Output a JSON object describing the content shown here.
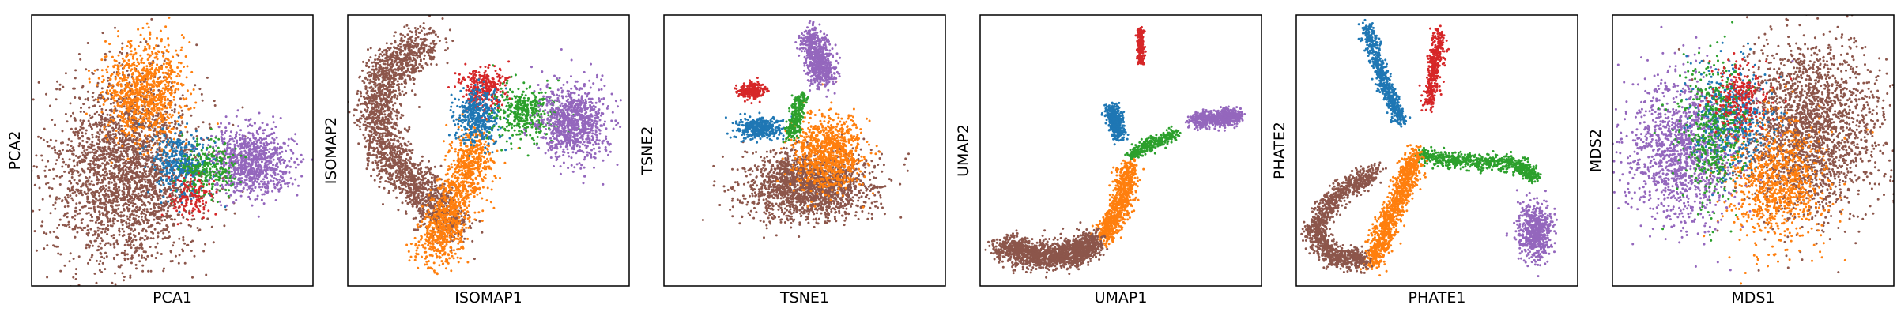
{
  "colors": {
    "blue": "#1f77b4",
    "orange": "#ff7f0e",
    "green": "#2ca02c",
    "red": "#d62728",
    "purple": "#9467bd",
    "brown": "#8c564b"
  },
  "chart_data": [
    {
      "type": "scatter",
      "xlabel": "PCA1",
      "ylabel": "PCA2",
      "xlim": [
        0,
        100
      ],
      "ylim": [
        0,
        100
      ],
      "grid": false,
      "ticks": false,
      "legend": "none",
      "series": [
        {
          "color": "brown",
          "n": 2600,
          "cx": 34,
          "cy": 42,
          "sx": 13,
          "sy": 17
        },
        {
          "color": "orange",
          "n": 900,
          "cx": 40,
          "cy": 72,
          "sx": 7,
          "sy": 9
        },
        {
          "color": "purple",
          "n": 900,
          "cx": 78,
          "cy": 46,
          "sx": 7,
          "sy": 6
        },
        {
          "color": "blue",
          "n": 350,
          "cx": 53,
          "cy": 45,
          "sx": 5,
          "sy": 6
        },
        {
          "color": "green",
          "n": 250,
          "cx": 63,
          "cy": 43,
          "sx": 5,
          "sy": 5
        },
        {
          "color": "red",
          "n": 120,
          "cx": 57,
          "cy": 33,
          "sx": 4,
          "sy": 4
        }
      ]
    },
    {
      "type": "scatter",
      "xlabel": "ISOMAP1",
      "ylabel": "ISOMAP2",
      "xlim": [
        0,
        100
      ],
      "ylim": [
        0,
        100
      ],
      "grid": false,
      "ticks": false,
      "legend": "none",
      "series": [
        {
          "color": "brown",
          "n": 2200,
          "path": [
            [
              28,
              90
            ],
            [
              14,
              80
            ],
            [
              10,
              62
            ],
            [
              16,
              44
            ],
            [
              28,
              34
            ],
            [
              38,
              22
            ]
          ],
          "s": 4
        },
        {
          "color": "orange",
          "n": 1100,
          "path": [
            [
              30,
              12
            ],
            [
              35,
              24
            ],
            [
              42,
              40
            ],
            [
              46,
              54
            ]
          ],
          "s": 4
        },
        {
          "color": "red",
          "n": 300,
          "cx": 48,
          "cy": 73,
          "sx": 4,
          "sy": 4
        },
        {
          "color": "blue",
          "n": 400,
          "cx": 46,
          "cy": 62,
          "sx": 4,
          "sy": 5
        },
        {
          "color": "green",
          "n": 400,
          "cx": 64,
          "cy": 64,
          "sx": 6,
          "sy": 5
        },
        {
          "color": "purple",
          "n": 900,
          "cx": 80,
          "cy": 60,
          "sx": 6,
          "sy": 7
        }
      ]
    },
    {
      "type": "scatter",
      "xlabel": "TSNE1",
      "ylabel": "TSNE2",
      "xlim": [
        0,
        100
      ],
      "ylim": [
        0,
        100
      ],
      "grid": false,
      "ticks": false,
      "legend": "none",
      "series": [
        {
          "color": "brown",
          "n": 1800,
          "cx": 51,
          "cy": 37,
          "sx": 11,
          "sy": 6
        },
        {
          "color": "orange",
          "n": 900,
          "cx": 58,
          "cy": 49,
          "sx": 6,
          "sy": 7
        },
        {
          "color": "purple",
          "n": 700,
          "path": [
            [
              52,
              92
            ],
            [
              55,
              84
            ],
            [
              57,
              76
            ]
          ],
          "s": 2.5
        },
        {
          "color": "blue",
          "n": 400,
          "cx": 34,
          "cy": 58,
          "sx": 4,
          "sy": 2
        },
        {
          "color": "red",
          "n": 220,
          "cx": 31,
          "cy": 72,
          "sx": 2.5,
          "sy": 1.5
        },
        {
          "color": "green",
          "n": 260,
          "path": [
            [
              49,
              70
            ],
            [
              47,
              62
            ],
            [
              45,
              55
            ]
          ],
          "s": 1.2
        }
      ]
    },
    {
      "type": "scatter",
      "xlabel": "UMAP1",
      "ylabel": "UMAP2",
      "xlim": [
        0,
        100
      ],
      "ylim": [
        0,
        100
      ],
      "grid": false,
      "ticks": false,
      "legend": "none",
      "series": [
        {
          "color": "red",
          "n": 200,
          "path": [
            [
              57,
              95
            ],
            [
              57,
              82
            ]
          ],
          "s": 0.6
        },
        {
          "color": "blue",
          "n": 400,
          "path": [
            [
              47,
              66
            ],
            [
              48,
              60
            ],
            [
              50,
              55
            ]
          ],
          "s": 1.3
        },
        {
          "color": "purple",
          "n": 600,
          "path": [
            [
              76,
              61
            ],
            [
              85,
              62
            ],
            [
              92,
              63
            ]
          ],
          "s": 1.5
        },
        {
          "color": "green",
          "n": 300,
          "path": [
            [
              53,
              48
            ],
            [
              60,
              52
            ],
            [
              70,
              56
            ]
          ],
          "s": 1.2
        },
        {
          "color": "orange",
          "n": 800,
          "path": [
            [
              53,
              44
            ],
            [
              50,
              30
            ],
            [
              44,
              18
            ]
          ],
          "s": 2
        },
        {
          "color": "brown",
          "n": 1600,
          "path": [
            [
              8,
              14
            ],
            [
              20,
              11
            ],
            [
              33,
              12
            ],
            [
              40,
              16
            ]
          ],
          "s": 2.5
        }
      ]
    },
    {
      "type": "scatter",
      "xlabel": "PHATE1",
      "ylabel": "PHATE2",
      "xlim": [
        0,
        100
      ],
      "ylim": [
        0,
        100
      ],
      "grid": false,
      "ticks": false,
      "legend": "none",
      "series": [
        {
          "color": "blue",
          "n": 600,
          "path": [
            [
              25,
              96
            ],
            [
              31,
              76
            ],
            [
              37,
              61
            ]
          ],
          "s": 1.3
        },
        {
          "color": "red",
          "n": 400,
          "path": [
            [
              51,
              93
            ],
            [
              49,
              80
            ],
            [
              47,
              66
            ]
          ],
          "s": 1.3
        },
        {
          "color": "green",
          "n": 700,
          "path": [
            [
              44,
              48
            ],
            [
              60,
              46
            ],
            [
              78,
              45
            ],
            [
              85,
              40
            ]
          ],
          "s": 1.5
        },
        {
          "color": "purple",
          "n": 600,
          "cx": 85,
          "cy": 20,
          "sx": 3,
          "sy": 5
        },
        {
          "color": "orange",
          "n": 1000,
          "path": [
            [
              42,
              48
            ],
            [
              38,
              36
            ],
            [
              32,
              22
            ],
            [
              27,
              8
            ]
          ],
          "s": 2
        },
        {
          "color": "brown",
          "n": 1200,
          "path": [
            [
              28,
              42
            ],
            [
              14,
              34
            ],
            [
              6,
              20
            ],
            [
              14,
              10
            ],
            [
              24,
              10
            ]
          ],
          "s": 2
        }
      ]
    },
    {
      "type": "scatter",
      "xlabel": "MDS1",
      "ylabel": "MDS2",
      "xlim": [
        0,
        100
      ],
      "ylim": [
        0,
        100
      ],
      "grid": false,
      "ticks": false,
      "legend": "none",
      "series": [
        {
          "color": "brown",
          "n": 2200,
          "cx": 70,
          "cy": 58,
          "sx": 13,
          "sy": 16
        },
        {
          "color": "orange",
          "n": 900,
          "cx": 58,
          "cy": 38,
          "sx": 9,
          "sy": 11
        },
        {
          "color": "purple",
          "n": 1300,
          "cx": 24,
          "cy": 50,
          "sx": 10,
          "sy": 13
        },
        {
          "color": "blue",
          "n": 450,
          "cx": 42,
          "cy": 62,
          "sx": 7,
          "sy": 10
        },
        {
          "color": "green",
          "n": 450,
          "cx": 36,
          "cy": 58,
          "sx": 6,
          "sy": 13
        },
        {
          "color": "red",
          "n": 220,
          "cx": 46,
          "cy": 70,
          "sx": 5,
          "sy": 6
        }
      ]
    }
  ]
}
